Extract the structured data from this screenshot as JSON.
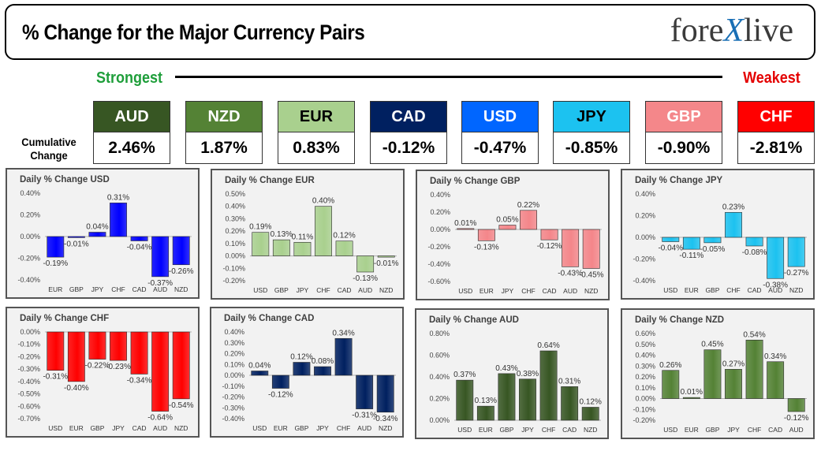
{
  "header": {
    "title": "% Change for the Major Currency Pairs",
    "logo_text_1": "fore",
    "logo_text_x": "X",
    "logo_text_2": "live"
  },
  "ranking": {
    "strongest_label": "Strongest",
    "weakest_label": "Weakest",
    "cumulative_label": "Cumulative Change",
    "currencies": [
      {
        "code": "AUD",
        "value": "2.46%",
        "bg": "#375623",
        "fg": "#ffffff"
      },
      {
        "code": "NZD",
        "value": "1.87%",
        "bg": "#548235",
        "fg": "#ffffff"
      },
      {
        "code": "EUR",
        "value": "0.83%",
        "bg": "#a9d08e",
        "fg": "#000000"
      },
      {
        "code": "CAD",
        "value": "-0.12%",
        "bg": "#002060",
        "fg": "#ffffff"
      },
      {
        "code": "USD",
        "value": "-0.47%",
        "bg": "#0066ff",
        "fg": "#ffffff"
      },
      {
        "code": "JPY",
        "value": "-0.85%",
        "bg": "#1cc2f0",
        "fg": "#000000"
      },
      {
        "code": "GBP",
        "value": "-0.90%",
        "bg": "#f4878a",
        "fg": "#ffffff"
      },
      {
        "code": "CHF",
        "value": "-2.81%",
        "bg": "#ff0000",
        "fg": "#ffffff"
      }
    ]
  },
  "chart_data": [
    {
      "type": "bar",
      "title": "Daily % Change USD",
      "color": "#0000ff",
      "categories": [
        "EUR",
        "GBP",
        "JPY",
        "CHF",
        "CAD",
        "AUD",
        "NZD"
      ],
      "values": [
        -0.19,
        -0.01,
        0.04,
        0.31,
        -0.04,
        -0.37,
        -0.26
      ],
      "labels": [
        "-0.19%",
        "-0.01%",
        "0.04%",
        "0.31%",
        "-0.04%",
        "-0.37%",
        "-0.26%"
      ],
      "ylim": [
        -0.4,
        0.4
      ],
      "ticks": [
        "0.40%",
        "0.20%",
        "0.00%",
        "-0.20%",
        "-0.40%"
      ],
      "tick_values": [
        0.4,
        0.2,
        0,
        -0.2,
        -0.4
      ]
    },
    {
      "type": "bar",
      "title": "Daily % Change EUR",
      "color": "#a9d08e",
      "categories": [
        "USD",
        "GBP",
        "JPY",
        "CHF",
        "CAD",
        "AUD",
        "NZD"
      ],
      "values": [
        0.19,
        0.13,
        0.11,
        0.4,
        0.12,
        -0.13,
        -0.01
      ],
      "labels": [
        "0.19%",
        "0.13%",
        "0.11%",
        "0.40%",
        "0.12%",
        "-0.13%",
        "-0.01%"
      ],
      "ylim": [
        -0.2,
        0.5
      ],
      "ticks": [
        "0.50%",
        "0.40%",
        "0.30%",
        "0.20%",
        "0.10%",
        "0.00%",
        "-0.10%",
        "-0.20%"
      ],
      "tick_values": [
        0.5,
        0.4,
        0.3,
        0.2,
        0.1,
        0,
        -0.1,
        -0.2
      ]
    },
    {
      "type": "bar",
      "title": "Daily % Change GBP",
      "color": "#f4868a",
      "categories": [
        "USD",
        "EUR",
        "JPY",
        "CHF",
        "CAD",
        "AUD",
        "NZD"
      ],
      "values": [
        0.01,
        -0.13,
        0.05,
        0.22,
        -0.12,
        -0.43,
        -0.45
      ],
      "labels": [
        "0.01%",
        "-0.13%",
        "0.05%",
        "0.22%",
        "-0.12%",
        "-0.43%",
        "-0.45%"
      ],
      "ylim": [
        -0.6,
        0.4
      ],
      "ticks": [
        "0.40%",
        "0.20%",
        "0.00%",
        "-0.20%",
        "-0.40%",
        "-0.60%"
      ],
      "tick_values": [
        0.4,
        0.2,
        0,
        -0.2,
        -0.4,
        -0.6
      ]
    },
    {
      "type": "bar",
      "title": "Daily % Change JPY",
      "color": "#1cc2f0",
      "categories": [
        "USD",
        "EUR",
        "GBP",
        "CHF",
        "CAD",
        "AUD",
        "NZD"
      ],
      "values": [
        -0.04,
        -0.11,
        -0.05,
        0.23,
        -0.08,
        -0.38,
        -0.27
      ],
      "labels": [
        "-0.04%",
        "-0.11%",
        "-0.05%",
        "0.23%",
        "-0.08%",
        "-0.38%",
        "-0.27%"
      ],
      "ylim": [
        -0.4,
        0.4
      ],
      "ticks": [
        "0.40%",
        "0.20%",
        "0.00%",
        "-0.20%",
        "-0.40%"
      ],
      "tick_values": [
        0.4,
        0.2,
        0,
        -0.2,
        -0.4
      ]
    },
    {
      "type": "bar",
      "title": "Daily % Change CHF",
      "color": "#ff0000",
      "categories": [
        "USD",
        "EUR",
        "GBP",
        "JPY",
        "CAD",
        "AUD",
        "NZD"
      ],
      "values": [
        -0.31,
        -0.4,
        -0.22,
        -0.23,
        -0.34,
        -0.64,
        -0.54
      ],
      "labels": [
        "-0.31%",
        "-0.40%",
        "-0.22%",
        "-0.23%",
        "-0.34%",
        "-0.64%",
        "-0.54%"
      ],
      "ylim": [
        -0.7,
        0.0
      ],
      "ticks": [
        "0.00%",
        "-0.10%",
        "-0.20%",
        "-0.30%",
        "-0.40%",
        "-0.50%",
        "-0.60%",
        "-0.70%"
      ],
      "tick_values": [
        0,
        -0.1,
        -0.2,
        -0.3,
        -0.4,
        -0.5,
        -0.6,
        -0.7
      ]
    },
    {
      "type": "bar",
      "title": "Daily % Change CAD",
      "color": "#002060",
      "categories": [
        "USD",
        "EUR",
        "GBP",
        "JPY",
        "CHF",
        "AUD",
        "NZD"
      ],
      "values": [
        0.04,
        -0.12,
        0.12,
        0.08,
        0.34,
        -0.31,
        -0.34
      ],
      "labels": [
        "0.04%",
        "-0.12%",
        "0.12%",
        "0.08%",
        "0.34%",
        "-0.31%",
        "-0.34%"
      ],
      "ylim": [
        -0.4,
        0.4
      ],
      "ticks": [
        "0.40%",
        "0.30%",
        "0.20%",
        "0.10%",
        "0.00%",
        "-0.10%",
        "-0.20%",
        "-0.30%",
        "-0.40%"
      ],
      "tick_values": [
        0.4,
        0.3,
        0.2,
        0.1,
        0,
        -0.1,
        -0.2,
        -0.3,
        -0.4
      ]
    },
    {
      "type": "bar",
      "title": "Daily % Change AUD",
      "color": "#375623",
      "categories": [
        "USD",
        "EUR",
        "GBP",
        "JPY",
        "CHF",
        "CAD",
        "NZD"
      ],
      "values": [
        0.37,
        0.13,
        0.43,
        0.38,
        0.64,
        0.31,
        0.12
      ],
      "labels": [
        "0.37%",
        "0.13%",
        "0.43%",
        "0.38%",
        "0.64%",
        "0.31%",
        "0.12%"
      ],
      "ylim": [
        0.0,
        0.8
      ],
      "ticks": [
        "0.80%",
        "0.60%",
        "0.40%",
        "0.20%",
        "0.00%"
      ],
      "tick_values": [
        0.8,
        0.6,
        0.4,
        0.2,
        0
      ]
    },
    {
      "type": "bar",
      "title": "Daily % Change NZD",
      "color": "#548235",
      "categories": [
        "USD",
        "EUR",
        "GBP",
        "JPY",
        "CHF",
        "CAD",
        "AUD"
      ],
      "values": [
        0.26,
        0.01,
        0.45,
        0.27,
        0.54,
        0.34,
        -0.12
      ],
      "labels": [
        "0.26%",
        "0.01%",
        "0.45%",
        "0.27%",
        "0.54%",
        "0.34%",
        "-0.12%"
      ],
      "ylim": [
        -0.2,
        0.6
      ],
      "ticks": [
        "0.60%",
        "0.50%",
        "0.40%",
        "0.30%",
        "0.20%",
        "0.10%",
        "0.00%",
        "-0.10%",
        "-0.20%"
      ],
      "tick_values": [
        0.6,
        0.5,
        0.4,
        0.3,
        0.2,
        0.1,
        0,
        -0.1,
        -0.2
      ]
    }
  ]
}
